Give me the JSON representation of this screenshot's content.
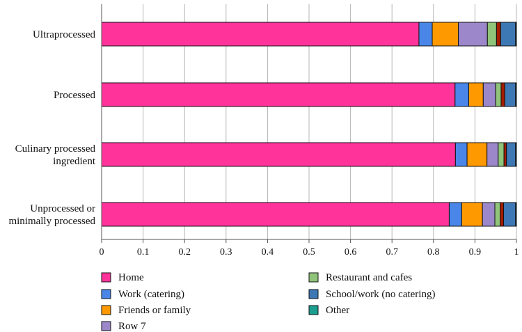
{
  "chart_data": {
    "type": "bar",
    "orientation": "horizontal",
    "stacked": true,
    "title": "",
    "xlabel": "",
    "ylabel": "",
    "xlim": [
      0,
      1
    ],
    "xticks": [
      "0",
      "0.1",
      "0.2",
      "0.3",
      "0.4",
      "0.5",
      "0.6",
      "0.7",
      "0.8",
      "0.9",
      "1"
    ],
    "grid": "vertical",
    "legend_position": "bottom",
    "categories": [
      "Ultraprocessed",
      "Processed",
      "Culinary processed ingredient",
      "Unprocessed or minimally processed"
    ],
    "category_lines": [
      [
        "Ultraprocessed"
      ],
      [
        "Processed"
      ],
      [
        "Culinary processed",
        "ingredient"
      ],
      [
        "Unprocessed or",
        "minimally processed"
      ]
    ],
    "series": [
      {
        "name": "Home",
        "color": "#ff3399",
        "values": [
          0.765,
          0.852,
          0.853,
          0.838
        ]
      },
      {
        "name": "Work (catering)",
        "color": "#4a86e8",
        "values": [
          0.032,
          0.033,
          0.028,
          0.03
        ]
      },
      {
        "name": "Friends or family",
        "color": "#ff9900",
        "values": [
          0.063,
          0.035,
          0.048,
          0.05
        ]
      },
      {
        "name": "Row 7",
        "color": "#9b87c9",
        "values": [
          0.07,
          0.03,
          0.027,
          0.03
        ]
      },
      {
        "name": "Restaurant and cafes",
        "color": "#8fc47a",
        "values": [
          0.022,
          0.013,
          0.014,
          0.013
        ]
      },
      {
        "name": "",
        "color": "#a61c00",
        "values": [
          0.01,
          0.009,
          0.006,
          0.008
        ]
      },
      {
        "name": "School/work (no catering)",
        "color": "#3d78b4",
        "values": [
          0.036,
          0.026,
          0.022,
          0.029
        ]
      },
      {
        "name": "Other",
        "color": "#1a9e8f",
        "values": [
          0.002,
          0.002,
          0.002,
          0.002
        ]
      }
    ],
    "legend": [
      {
        "label": "Home",
        "color": "#ff3399"
      },
      {
        "label": "Work (catering)",
        "color": "#4a86e8"
      },
      {
        "label": "Friends or family",
        "color": "#ff9900"
      },
      {
        "label": "Row 7",
        "color": "#9b87c9"
      },
      {
        "label": "Restaurant and cafes",
        "color": "#8fc47a"
      },
      {
        "label": "School/work (no catering)",
        "color": "#3d78b4"
      },
      {
        "label": "Other",
        "color": "#1a9e8f"
      }
    ]
  }
}
